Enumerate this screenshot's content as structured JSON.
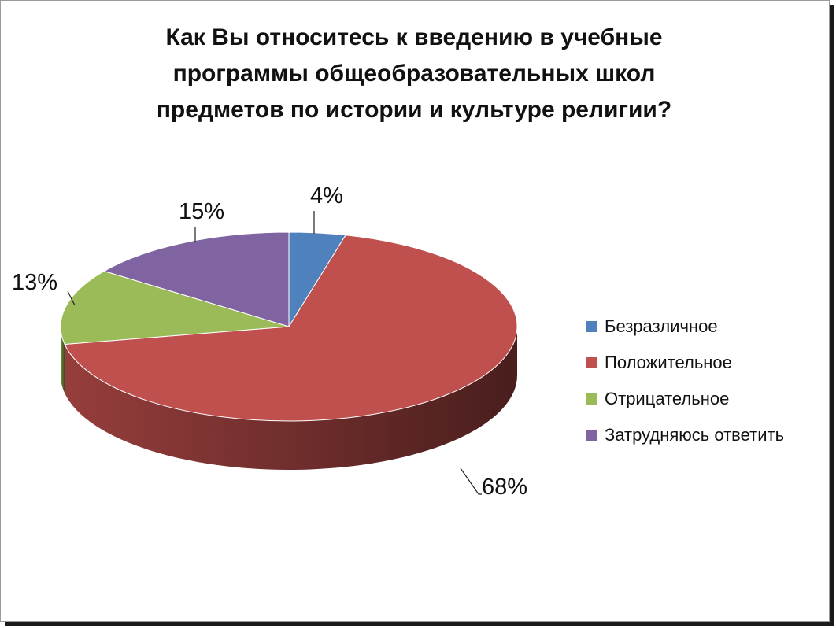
{
  "chart_data": {
    "type": "pie",
    "title": "Как Вы относитесь к введению в учебные\nпрограммы общеобразовательных школ\nпредметов по истории и культуре религии?",
    "categories": [
      "Безразличное",
      "Положительное",
      "Отрицательное",
      "Затрудняюсь ответить"
    ],
    "values": [
      4,
      68,
      13,
      15
    ],
    "data_labels": [
      "4%",
      "68%",
      "13%",
      "15%"
    ],
    "colors": [
      "#4f81bd",
      "#c0504d",
      "#9bbb59",
      "#8064a2"
    ],
    "legend_position": "right",
    "style": "3d-pie"
  }
}
